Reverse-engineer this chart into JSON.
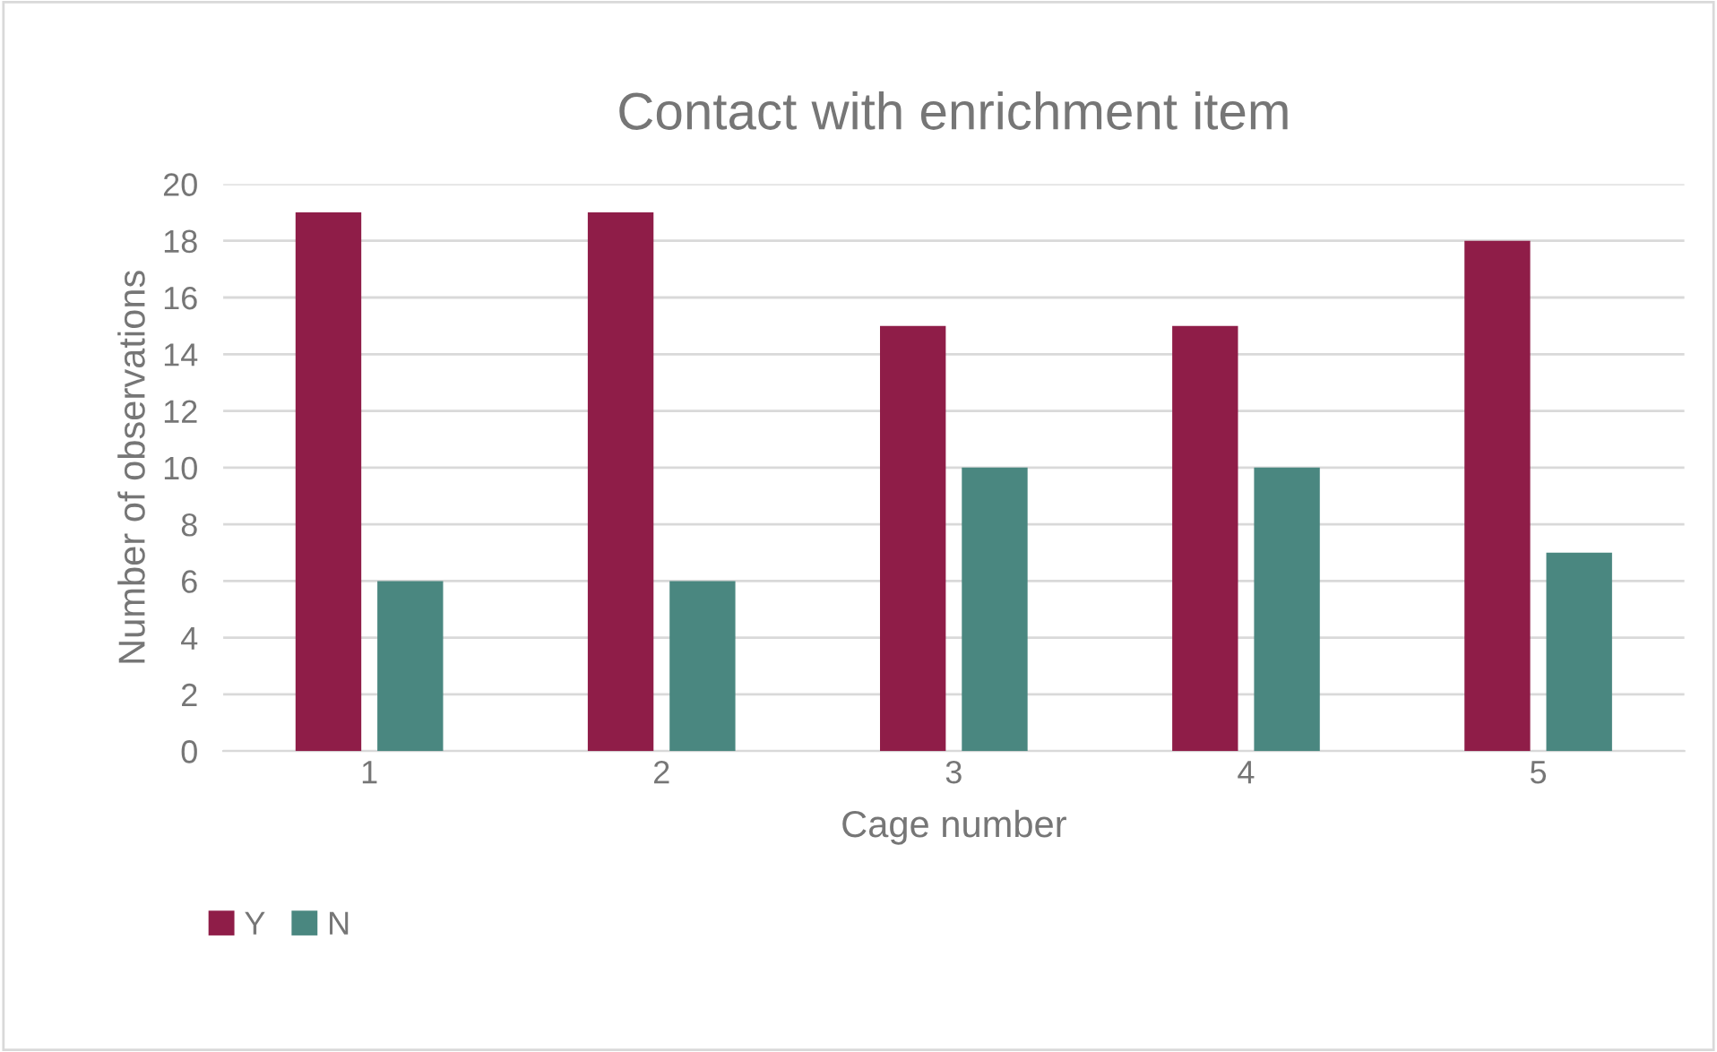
{
  "chart_data": {
    "type": "bar",
    "title": "Contact with enrichment item",
    "xlabel": "Cage number",
    "ylabel": "Number of observations",
    "categories": [
      "1",
      "2",
      "3",
      "4",
      "5"
    ],
    "series": [
      {
        "name": "Y",
        "color": "#8f1d48",
        "values": [
          19,
          19,
          15,
          15,
          18
        ]
      },
      {
        "name": "N",
        "color": "#4a8780",
        "values": [
          6,
          6,
          10,
          10,
          7
        ]
      }
    ],
    "ylim": [
      0,
      20
    ],
    "yticks": [
      0,
      2,
      4,
      6,
      8,
      10,
      12,
      14,
      16,
      18,
      20
    ],
    "grid": "y",
    "legend": "bottom left"
  }
}
